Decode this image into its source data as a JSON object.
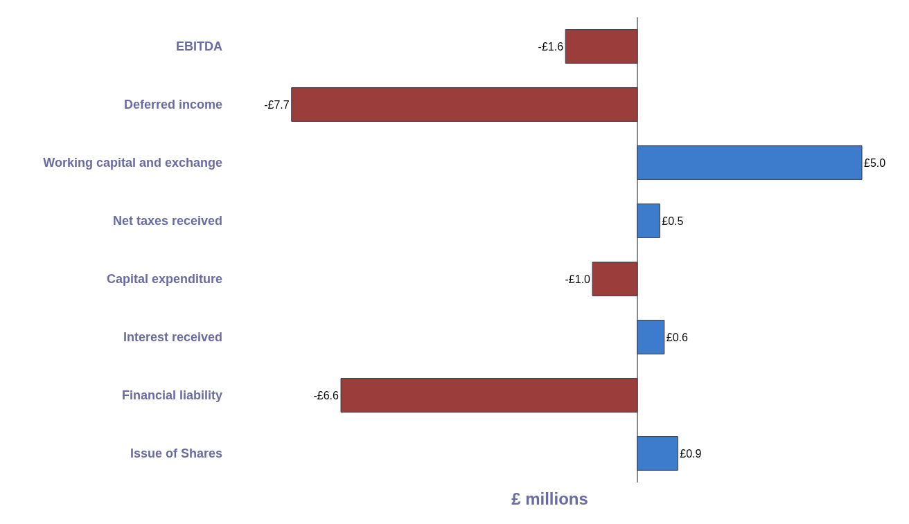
{
  "chart_data": {
    "type": "bar",
    "orientation": "horizontal",
    "xlabel": "£ millions",
    "categories": [
      "EBITDA",
      "Deferred income",
      "Working capital and exchange",
      "Net taxes received",
      "Capital expenditure",
      "Interest received",
      "Financial liability",
      "Issue of Shares"
    ],
    "values": [
      -1.6,
      -7.7,
      5.0,
      0.5,
      -1.0,
      0.6,
      -6.6,
      0.9
    ],
    "value_labels": [
      "-£1.6",
      "-£7.7",
      "£5.0",
      "£0.5",
      "-£1.0",
      "£0.6",
      "-£6.6",
      "£0.9"
    ],
    "colors": [
      "#9b3d3b",
      "#9b3d3b",
      "#3d7ccc",
      "#3d7ccc",
      "#9b3d3b",
      "#3d7ccc",
      "#9b3d3b",
      "#3d7ccc"
    ],
    "legend": false
  }
}
